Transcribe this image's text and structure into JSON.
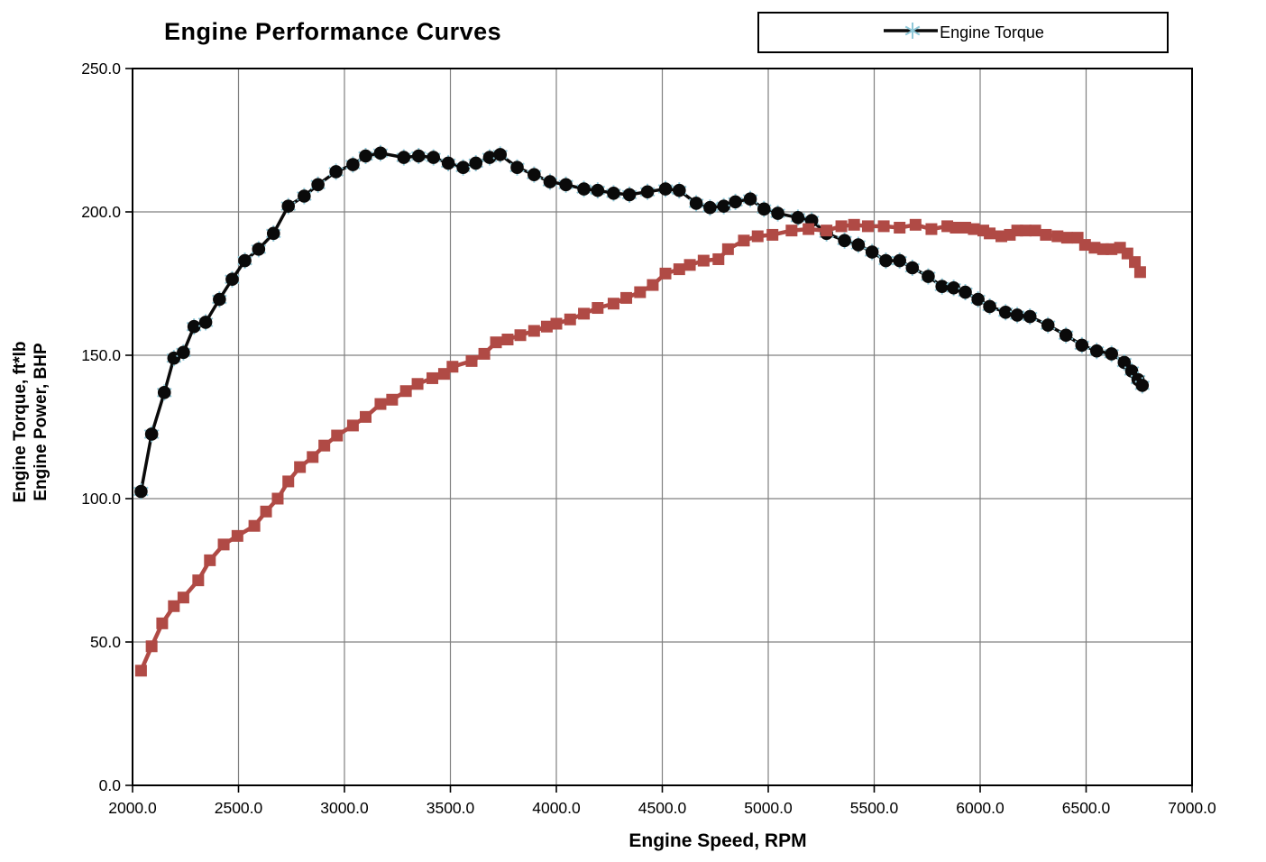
{
  "title": "Engine Performance Curves",
  "legend": {
    "position": "top-right",
    "items": [
      {
        "label": "Engine Torque",
        "marker": "asterisk-on-line",
        "line_color": "#0a0a0a",
        "marker_color": "#8fc8d8"
      }
    ]
  },
  "axes": {
    "x_title": "Engine Speed, RPM",
    "y_title_line1": "Engine Torque, ft*lb",
    "y_title_line2": "Engine Power, BHP"
  },
  "chart_data": {
    "type": "line",
    "title": "Engine Performance Curves",
    "xlabel": "Engine Speed, RPM",
    "ylabel": "Engine Torque, ft*lb / Engine Power, BHP",
    "xlim": [
      2000,
      7000
    ],
    "ylim": [
      0,
      250
    ],
    "grid": true,
    "legend_position": "top-right",
    "x_tick_values": [
      2000,
      2500,
      3000,
      3500,
      4000,
      4500,
      5000,
      5500,
      6000,
      6500,
      7000
    ],
    "x_tick_labels": [
      "2000.0",
      "2500.0",
      "3000.0",
      "3500.0",
      "4000.0",
      "4500.0",
      "5000.0",
      "5500.0",
      "6000.0",
      "6500.0",
      "7000.0"
    ],
    "y_tick_values": [
      0,
      50,
      100,
      150,
      200,
      250
    ],
    "y_tick_labels": [
      "0.0",
      "50.0",
      "100.0",
      "150.0",
      "200.0",
      "250.0"
    ],
    "colors": {
      "torque": "#0a0a0a",
      "torque_marker_accent": "#8fc8d8",
      "power": "#b04a45",
      "gridline": "#808080",
      "border": "#000000"
    },
    "series": [
      {
        "name": "Engine Torque",
        "units": "ft*lb",
        "marker": "circle",
        "color": "#0a0a0a",
        "show_in_legend": true,
        "points": [
          [
            2040,
            102.5
          ],
          [
            2090,
            122.5
          ],
          [
            2150,
            137
          ],
          [
            2195,
            149
          ],
          [
            2240,
            151
          ],
          [
            2290,
            160
          ],
          [
            2345,
            161.5
          ],
          [
            2410,
            169.5
          ],
          [
            2470,
            176.5
          ],
          [
            2530,
            183
          ],
          [
            2595,
            187
          ],
          [
            2665,
            192.5
          ],
          [
            2735,
            202
          ],
          [
            2810,
            205.5
          ],
          [
            2875,
            209.5
          ],
          [
            2960,
            214
          ],
          [
            3040,
            216.5
          ],
          [
            3100,
            219.5
          ],
          [
            3170,
            220.5
          ],
          [
            3280,
            219
          ],
          [
            3350,
            219.5
          ],
          [
            3420,
            219
          ],
          [
            3490,
            217
          ],
          [
            3560,
            215.5
          ],
          [
            3620,
            217
          ],
          [
            3685,
            219
          ],
          [
            3735,
            220
          ],
          [
            3815,
            215.5
          ],
          [
            3895,
            213
          ],
          [
            3970,
            210.5
          ],
          [
            4045,
            209.5
          ],
          [
            4130,
            208
          ],
          [
            4195,
            207.5
          ],
          [
            4270,
            206.5
          ],
          [
            4345,
            206
          ],
          [
            4430,
            207
          ],
          [
            4515,
            208
          ],
          [
            4580,
            207.5
          ],
          [
            4660,
            203
          ],
          [
            4725,
            201.5
          ],
          [
            4790,
            202
          ],
          [
            4845,
            203.5
          ],
          [
            4915,
            204.5
          ],
          [
            4980,
            201
          ],
          [
            5045,
            199.5
          ],
          [
            5140,
            198
          ],
          [
            5205,
            197
          ],
          [
            5275,
            192.5
          ],
          [
            5360,
            190
          ],
          [
            5425,
            188.5
          ],
          [
            5490,
            186
          ],
          [
            5555,
            183
          ],
          [
            5620,
            183
          ],
          [
            5680,
            180.5
          ],
          [
            5755,
            177.5
          ],
          [
            5820,
            174
          ],
          [
            5875,
            173.5
          ],
          [
            5930,
            172
          ],
          [
            5990,
            169.5
          ],
          [
            6045,
            167
          ],
          [
            6120,
            165
          ],
          [
            6175,
            164
          ],
          [
            6235,
            163.5
          ],
          [
            6320,
            160.5
          ],
          [
            6405,
            157
          ],
          [
            6480,
            153.5
          ],
          [
            6550,
            151.5
          ],
          [
            6620,
            150.5
          ],
          [
            6680,
            147.5
          ],
          [
            6715,
            144.5
          ],
          [
            6745,
            141.5
          ],
          [
            6765,
            139.5
          ]
        ]
      },
      {
        "name": "Engine Power",
        "units": "BHP",
        "marker": "square",
        "color": "#b04a45",
        "show_in_legend": false,
        "points": [
          [
            2040,
            40
          ],
          [
            2090,
            48.5
          ],
          [
            2140,
            56.5
          ],
          [
            2195,
            62.5
          ],
          [
            2240,
            65.5
          ],
          [
            2310,
            71.5
          ],
          [
            2365,
            78.5
          ],
          [
            2430,
            84
          ],
          [
            2495,
            87
          ],
          [
            2575,
            90.5
          ],
          [
            2630,
            95.5
          ],
          [
            2685,
            100
          ],
          [
            2735,
            106
          ],
          [
            2790,
            111
          ],
          [
            2850,
            114.5
          ],
          [
            2905,
            118.5
          ],
          [
            2965,
            122
          ],
          [
            3040,
            125.5
          ],
          [
            3100,
            128.5
          ],
          [
            3170,
            133
          ],
          [
            3225,
            134.5
          ],
          [
            3290,
            137.5
          ],
          [
            3345,
            140
          ],
          [
            3415,
            142
          ],
          [
            3470,
            143.5
          ],
          [
            3510,
            146
          ],
          [
            3600,
            148
          ],
          [
            3660,
            150.5
          ],
          [
            3715,
            154.5
          ],
          [
            3770,
            155.5
          ],
          [
            3830,
            157
          ],
          [
            3895,
            158.5
          ],
          [
            3955,
            160
          ],
          [
            4000,
            161
          ],
          [
            4065,
            162.5
          ],
          [
            4130,
            164.5
          ],
          [
            4195,
            166.5
          ],
          [
            4270,
            168
          ],
          [
            4330,
            170
          ],
          [
            4395,
            172
          ],
          [
            4455,
            174.5
          ],
          [
            4515,
            178.5
          ],
          [
            4580,
            180
          ],
          [
            4630,
            181.5
          ],
          [
            4695,
            183
          ],
          [
            4765,
            183.5
          ],
          [
            4810,
            187
          ],
          [
            4885,
            190
          ],
          [
            4950,
            191.5
          ],
          [
            5020,
            192
          ],
          [
            5110,
            193.5
          ],
          [
            5190,
            194
          ],
          [
            5275,
            193.5
          ],
          [
            5345,
            195
          ],
          [
            5405,
            195.5
          ],
          [
            5470,
            195
          ],
          [
            5545,
            195
          ],
          [
            5620,
            194.5
          ],
          [
            5695,
            195.5
          ],
          [
            5770,
            194
          ],
          [
            5845,
            195
          ],
          [
            5885,
            194.5
          ],
          [
            5930,
            194.5
          ],
          [
            5970,
            194
          ],
          [
            6015,
            193.5
          ],
          [
            6045,
            192.5
          ],
          [
            6100,
            191.5
          ],
          [
            6140,
            192
          ],
          [
            6175,
            193.5
          ],
          [
            6215,
            193.5
          ],
          [
            6260,
            193.5
          ],
          [
            6310,
            192
          ],
          [
            6365,
            191.5
          ],
          [
            6410,
            191
          ],
          [
            6460,
            191
          ],
          [
            6495,
            188.5
          ],
          [
            6540,
            187.5
          ],
          [
            6580,
            187
          ],
          [
            6620,
            187
          ],
          [
            6660,
            187.5
          ],
          [
            6695,
            185.5
          ],
          [
            6730,
            182.5
          ],
          [
            6755,
            179
          ]
        ]
      }
    ]
  }
}
